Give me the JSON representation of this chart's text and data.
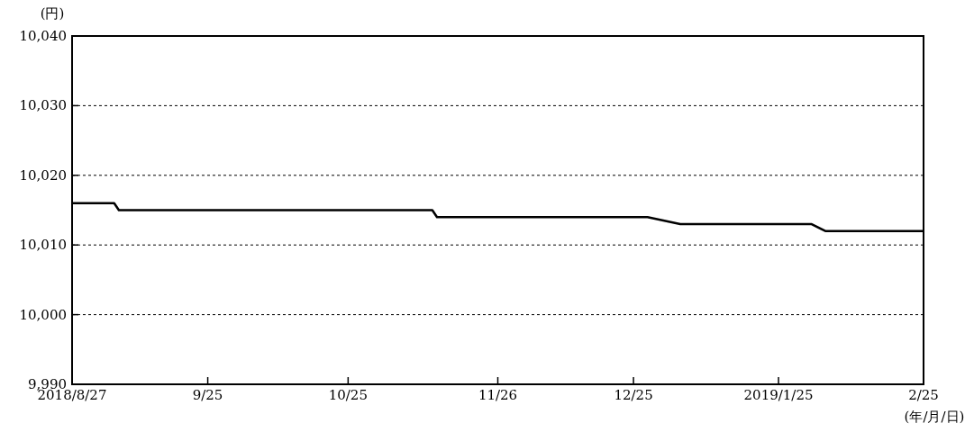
{
  "chart_data": {
    "type": "line",
    "ylabel": "(円)",
    "xlabel": "(年/月/日)",
    "x": [
      "2018-08-27",
      "2018-09-05",
      "2018-09-06",
      "2018-11-12",
      "2018-11-13",
      "2018-12-28",
      "2019-01-04",
      "2019-02-01",
      "2019-02-04",
      "2019-02-25"
    ],
    "series": [
      {
        "color": "#000000",
        "values": [
          10016,
          10016,
          10015,
          10015,
          10014,
          10014,
          10013,
          10013,
          10012,
          10012
        ]
      }
    ],
    "xlim": [
      "2018-08-27",
      "2019-02-25"
    ],
    "xticks": [
      {
        "value": "2018-08-27",
        "label": "2018/8/27"
      },
      {
        "value": "2018-09-25",
        "label": "9/25"
      },
      {
        "value": "2018-10-25",
        "label": "10/25"
      },
      {
        "value": "2018-11-26",
        "label": "11/26"
      },
      {
        "value": "2018-12-25",
        "label": "12/25"
      },
      {
        "value": "2019-01-25",
        "label": "2019/1/25"
      },
      {
        "value": "2019-02-25",
        "label": "2/25"
      }
    ],
    "ylim": [
      9990,
      10040
    ],
    "yticks": [
      {
        "value": 9990,
        "label": "9,990"
      },
      {
        "value": 10000,
        "label": "10,000"
      },
      {
        "value": 10010,
        "label": "10,010"
      },
      {
        "value": 10020,
        "label": "10,020"
      },
      {
        "value": 10030,
        "label": "10,030"
      },
      {
        "value": 10040,
        "label": "10,040"
      }
    ],
    "grid": "y",
    "line_style": "solid"
  }
}
